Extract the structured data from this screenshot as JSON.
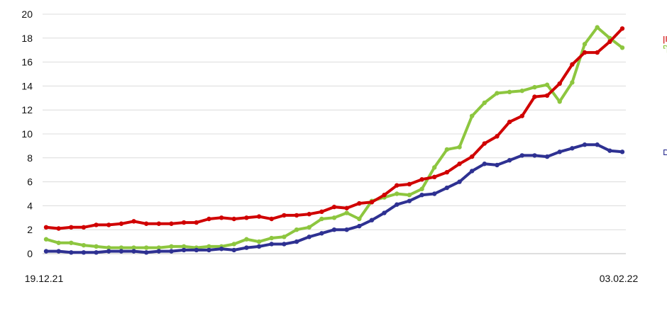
{
  "chart_data": {
    "type": "line",
    "title": "",
    "xlabel": "",
    "ylabel": "",
    "x_start_label": "19.12.21",
    "x_end_label": "03.02.22",
    "ylim": [
      0,
      20
    ],
    "yticks": [
      "0",
      "2",
      "4",
      "6",
      "8",
      "10",
      "12",
      "14",
      "16",
      "18",
      "20"
    ],
    "grid": true,
    "legend": "right, inline labels at line ends",
    "series": [
      {
        "name": "ללא חיסון",
        "color": "#d00000",
        "values": [
          2.2,
          2.1,
          2.2,
          2.2,
          2.4,
          2.4,
          2.5,
          2.7,
          2.5,
          2.5,
          2.5,
          2.6,
          2.6,
          2.9,
          3.0,
          2.9,
          3.0,
          3.1,
          2.9,
          3.2,
          3.2,
          3.3,
          3.5,
          3.9,
          3.8,
          4.2,
          4.3,
          4.9,
          5.7,
          5.8,
          6.2,
          6.4,
          6.8,
          7.5,
          8.1,
          9.2,
          9.8,
          11.0,
          11.5,
          13.1,
          13.2,
          14.2,
          15.8,
          16.8,
          16.8,
          17.7,
          18.8
        ]
      },
      {
        "name": "ללא תוקף",
        "color": "#8dc63f",
        "values": [
          1.2,
          0.9,
          0.9,
          0.7,
          0.6,
          0.5,
          0.5,
          0.5,
          0.5,
          0.5,
          0.6,
          0.6,
          0.5,
          0.6,
          0.6,
          0.8,
          1.2,
          1.0,
          1.3,
          1.4,
          2.0,
          2.2,
          2.9,
          3.0,
          3.4,
          2.9,
          4.4,
          4.7,
          5.0,
          4.9,
          5.4,
          7.2,
          8.7,
          8.9,
          11.5,
          12.6,
          13.4,
          13.5,
          13.6,
          13.9,
          14.1,
          12.7,
          14.3,
          17.5,
          18.9,
          18.0,
          17.2
        ]
      },
      {
        "name": "מחוסנים",
        "color": "#2e3192",
        "values": [
          0.2,
          0.2,
          0.1,
          0.1,
          0.1,
          0.2,
          0.2,
          0.2,
          0.1,
          0.2,
          0.2,
          0.3,
          0.3,
          0.3,
          0.4,
          0.3,
          0.5,
          0.6,
          0.8,
          0.8,
          1.0,
          1.4,
          1.7,
          2.0,
          2.0,
          2.3,
          2.8,
          3.4,
          4.1,
          4.4,
          4.9,
          5.0,
          5.5,
          6.0,
          6.9,
          7.5,
          7.4,
          7.8,
          8.2,
          8.2,
          8.1,
          8.5,
          8.8,
          9.1,
          9.1,
          8.6,
          8.5
        ]
      }
    ]
  }
}
